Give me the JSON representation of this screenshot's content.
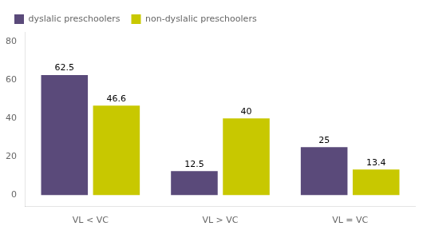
{
  "chart_data": {
    "type": "bar",
    "categories": [
      "VL < VC",
      "VL > VC",
      "VL = VC"
    ],
    "series": [
      {
        "name": "dyslalic preschoolers",
        "color": "#5a4a7a",
        "values": [
          62.5,
          12.5,
          25
        ]
      },
      {
        "name": "non-dyslalic preschoolers",
        "color": "#c8c800",
        "values": [
          46.6,
          40,
          13.4
        ]
      }
    ],
    "ylim": [
      -6,
      85
    ],
    "yticks": [
      0,
      20,
      40,
      60,
      80
    ],
    "grid": false,
    "legend": "upper left",
    "data_labels": true
  }
}
